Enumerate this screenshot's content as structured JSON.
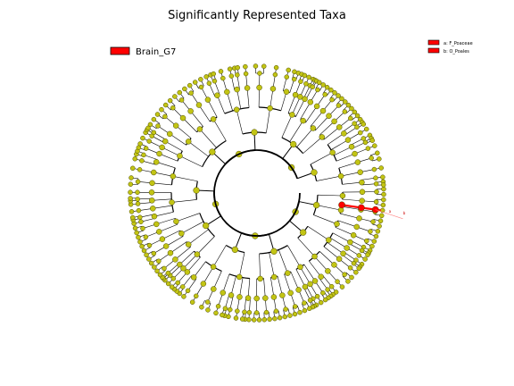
{
  "chart_data": {
    "type": "cladogram",
    "title": "Significantly Represented Taxa",
    "group_legend": [
      {
        "name": "Brain_G7",
        "color": "#ff0000"
      }
    ],
    "clade_legend": [
      {
        "label": "a: F_Poaceae",
        "color": "#ff0000"
      },
      {
        "label": "b: O_Poales",
        "color": "#ff0000"
      }
    ],
    "clade_labels": [
      "a",
      "b"
    ],
    "node_colors": {
      "default": "#c2c414",
      "enriched": "#ff0000"
    }
  }
}
